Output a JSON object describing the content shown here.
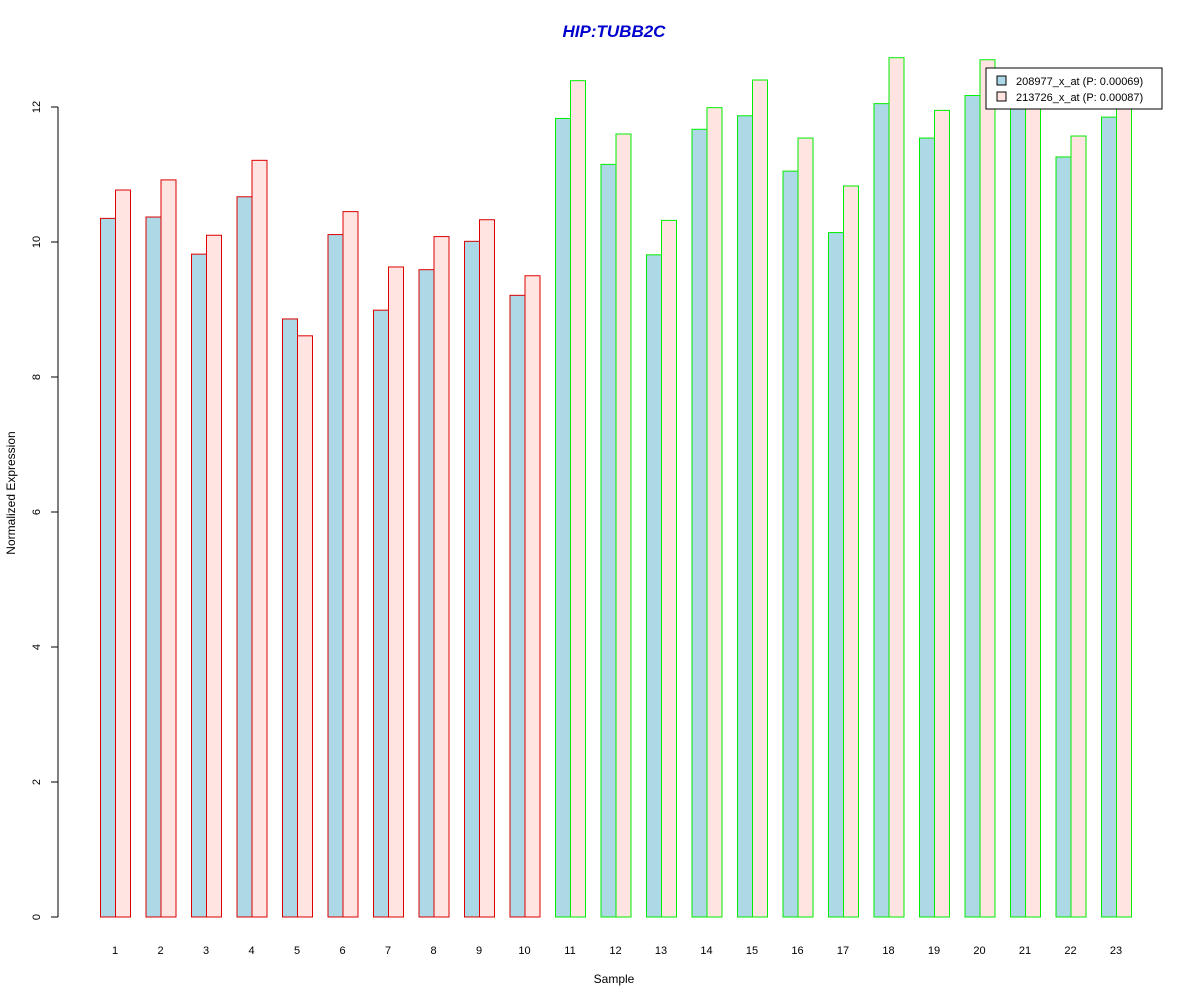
{
  "chart_data": {
    "type": "bar",
    "title": "HIP:TUBB2C",
    "xlabel": "Sample",
    "ylabel": "Normalized Expression",
    "categories": [
      "1",
      "2",
      "3",
      "4",
      "5",
      "6",
      "7",
      "8",
      "9",
      "10",
      "11",
      "12",
      "13",
      "14",
      "15",
      "16",
      "17",
      "18",
      "19",
      "20",
      "21",
      "22",
      "23"
    ],
    "series": [
      {
        "name": "208977_x_at (P: 0.00069)",
        "values": [
          10.35,
          10.37,
          9.82,
          10.67,
          8.86,
          10.11,
          8.99,
          9.59,
          10.01,
          9.21,
          11.83,
          11.15,
          9.81,
          11.67,
          11.87,
          11.05,
          10.14,
          12.05,
          11.54,
          12.17,
          12.02,
          11.26,
          11.85
        ]
      },
      {
        "name": "213726_x_at (P: 0.00087)",
        "values": [
          10.77,
          10.92,
          10.1,
          11.21,
          8.61,
          10.45,
          9.63,
          10.08,
          10.33,
          9.5,
          12.39,
          11.6,
          10.32,
          11.99,
          12.4,
          11.54,
          10.83,
          12.73,
          11.95,
          12.7,
          12.1,
          11.57,
          12.05
        ]
      }
    ],
    "group_border": [
      "red",
      "red",
      "red",
      "red",
      "red",
      "red",
      "red",
      "red",
      "red",
      "red",
      "green",
      "green",
      "green",
      "green",
      "green",
      "green",
      "green",
      "green",
      "green",
      "green",
      "green",
      "green",
      "green"
    ],
    "ylim": [
      0,
      12.8
    ],
    "yticks": [
      0,
      2,
      4,
      6,
      8,
      10,
      12
    ],
    "grid": false,
    "legend_position": "top-right",
    "colors": {
      "title": "#0000CC",
      "series_fill": [
        "#ADD8E6",
        "#FFE4E1"
      ],
      "border_red": "#DD0000",
      "border_green": "#00EE00",
      "axis": "#000000"
    }
  }
}
